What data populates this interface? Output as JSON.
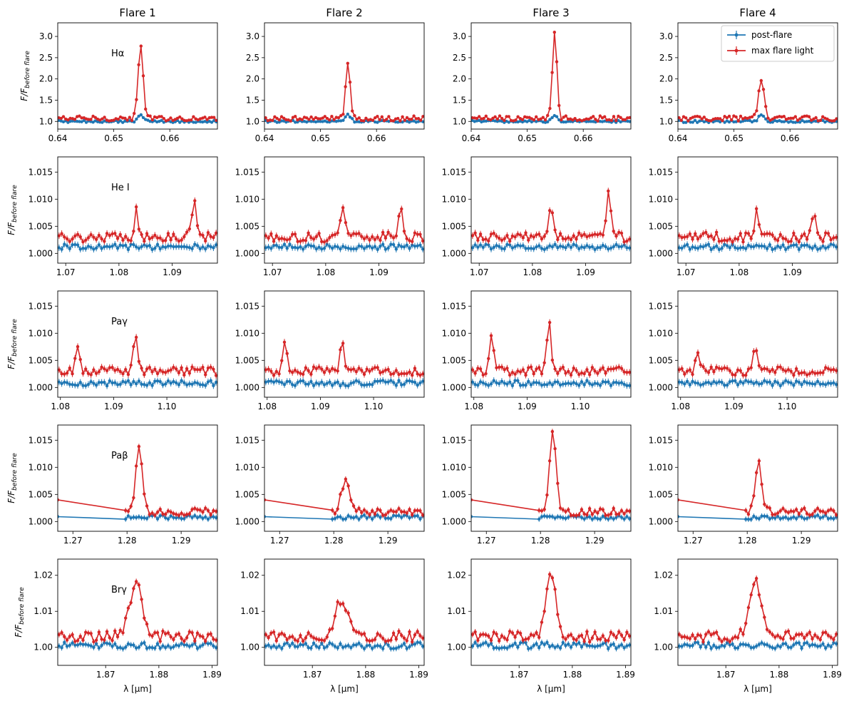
{
  "figure": {
    "xlabel": "λ [μm]",
    "ylabel_main": "F/F",
    "ylabel_sub": "before flare"
  },
  "legend": {
    "location": "top-right",
    "entries": [
      {
        "label": "post-flare",
        "color": "#1f77b4"
      },
      {
        "label": "max flare light",
        "color": "#d62728"
      }
    ]
  },
  "colors": {
    "post": "#1f77b4",
    "max": "#d62728"
  },
  "chart_data": {
    "type": "line",
    "columns": [
      "Flare 1",
      "Flare 2",
      "Flare 3",
      "Flare 4"
    ],
    "rows": [
      {
        "line": "Hα",
        "xlim": [
          0.64,
          0.6685
        ],
        "ylim": [
          0.82,
          3.32
        ],
        "xticks": [
          {
            "v": 0.64,
            "label": "0.64"
          },
          {
            "v": 0.65,
            "label": "0.65"
          },
          {
            "v": 0.66,
            "label": "0.66"
          }
        ],
        "yticks": [
          {
            "v": 1.0,
            "label": "1.0"
          },
          {
            "v": 1.5,
            "label": "1.5"
          },
          {
            "v": 2.0,
            "label": "2.0"
          },
          {
            "v": 2.5,
            "label": "2.5"
          },
          {
            "v": 3.0,
            "label": "3.0"
          }
        ],
        "npts": 70,
        "base_max": 1.07,
        "base_post": 1.0,
        "noise_max": 0.06,
        "noise_post": 0.025,
        "err": 0.02,
        "peaks": [
          [
            0.6548,
            1.7,
            0.00045
          ],
          [
            0.6549,
            1.3,
            0.0004
          ],
          [
            0.6549,
            2.05,
            0.0004
          ],
          [
            0.6549,
            0.92,
            0.0005
          ]
        ],
        "post_peak": [
          0.6549,
          0.15,
          0.0005
        ]
      },
      {
        "line": "He I",
        "xlim": [
          1.0685,
          1.0985
        ],
        "ylim": [
          0.9982,
          1.0178
        ],
        "xticks": [
          {
            "v": 1.07,
            "label": "1.07"
          },
          {
            "v": 1.08,
            "label": "1.08"
          },
          {
            "v": 1.09,
            "label": "1.09"
          }
        ],
        "yticks": [
          {
            "v": 1.0,
            "label": "1.000"
          },
          {
            "v": 1.005,
            "label": "1.005"
          },
          {
            "v": 1.01,
            "label": "1.010"
          },
          {
            "v": 1.015,
            "label": "1.015"
          }
        ],
        "npts": 60,
        "base_max": 1.003,
        "base_post": 1.0012,
        "noise_max": 0.0009,
        "noise_post": 0.0005,
        "err": 0.0006,
        "peaks": [
          [
            1.0833,
            0.005,
            0.00035
          ],
          [
            1.0833,
            0.006,
            0.0004
          ],
          [
            1.0835,
            0.0058,
            0.0004
          ],
          [
            1.0833,
            0.0045,
            0.0004
          ]
        ],
        "peak2": [
          [
            1.0941,
            0.0072,
            0.0004
          ],
          [
            1.0941,
            0.0065,
            0.0004
          ],
          [
            1.0943,
            0.0085,
            0.0004
          ],
          [
            1.0941,
            0.005,
            0.0004
          ]
        ]
      },
      {
        "line": "Paγ",
        "xlim": [
          1.0795,
          1.1095
        ],
        "ylim": [
          0.9982,
          1.0178
        ],
        "xticks": [
          {
            "v": 1.08,
            "label": "1.08"
          },
          {
            "v": 1.09,
            "label": "1.09"
          },
          {
            "v": 1.1,
            "label": "1.10"
          }
        ],
        "yticks": [
          {
            "v": 1.0,
            "label": "1.000"
          },
          {
            "v": 1.005,
            "label": "1.005"
          },
          {
            "v": 1.01,
            "label": "1.010"
          },
          {
            "v": 1.015,
            "label": "1.015"
          }
        ],
        "npts": 60,
        "base_max": 1.003,
        "base_post": 1.0008,
        "noise_max": 0.0008,
        "noise_post": 0.0005,
        "err": 0.0006,
        "peaks": [
          [
            1.0941,
            0.0072,
            0.00045
          ],
          [
            1.0941,
            0.0055,
            0.0004
          ],
          [
            1.0941,
            0.009,
            0.0004
          ],
          [
            1.0941,
            0.0045,
            0.0004
          ]
        ],
        "peak2": [
          [
            1.0833,
            0.005,
            0.0004
          ],
          [
            1.0833,
            0.005,
            0.0004
          ],
          [
            1.0833,
            0.007,
            0.0004
          ],
          [
            1.0833,
            0.003,
            0.0004
          ]
        ]
      },
      {
        "line": "Paβ",
        "xlim": [
          1.2672,
          1.2967
        ],
        "ylim": [
          0.9982,
          1.0178
        ],
        "xticks": [
          {
            "v": 1.27,
            "label": "1.27"
          },
          {
            "v": 1.28,
            "label": "1.28"
          },
          {
            "v": 1.29,
            "label": "1.29"
          }
        ],
        "yticks": [
          {
            "v": 1.0,
            "label": "1.000"
          },
          {
            "v": 1.005,
            "label": "1.005"
          },
          {
            "v": 1.01,
            "label": "1.010"
          },
          {
            "v": 1.015,
            "label": "1.015"
          }
        ],
        "npts": 60,
        "base_max": 1.0018,
        "base_post": 1.0008,
        "noise_max": 0.0007,
        "noise_post": 0.0004,
        "err": 0.0005,
        "peaks": [
          [
            1.2822,
            0.0115,
            0.0006
          ],
          [
            1.2822,
            0.0055,
            0.0008
          ],
          [
            1.2823,
            0.0145,
            0.0006
          ],
          [
            1.2821,
            0.009,
            0.0006
          ]
        ],
        "gap": [
          1.2672,
          1.2793
        ]
      },
      {
        "line": "Brγ",
        "xlim": [
          1.861,
          1.891
        ],
        "ylim": [
          0.995,
          1.0245
        ],
        "xticks": [
          {
            "v": 1.87,
            "label": "1.87"
          },
          {
            "v": 1.88,
            "label": "1.88"
          },
          {
            "v": 1.89,
            "label": "1.89"
          }
        ],
        "yticks": [
          {
            "v": 1.0,
            "label": "1.00"
          },
          {
            "v": 1.01,
            "label": "1.01"
          },
          {
            "v": 1.02,
            "label": "1.02"
          }
        ],
        "npts": 60,
        "base_max": 1.003,
        "base_post": 1.0005,
        "noise_max": 0.0015,
        "noise_post": 0.0009,
        "err": 0.0008,
        "peaks": [
          [
            1.8757,
            0.0145,
            0.0012
          ],
          [
            1.8755,
            0.0105,
            0.0012
          ],
          [
            1.876,
            0.018,
            0.0009
          ],
          [
            1.8755,
            0.0155,
            0.0011
          ]
        ]
      }
    ]
  }
}
